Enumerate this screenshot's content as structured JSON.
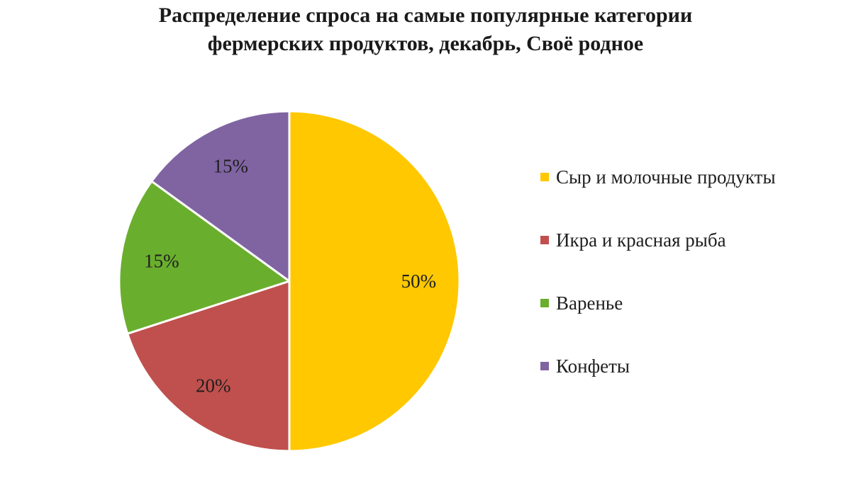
{
  "chart_data": {
    "type": "pie",
    "title": "Распределение спроса на самые популярные категории\nфермерских продуктов, декабрь, Своё родное",
    "categories": [
      "Сыр и молочные продукты",
      "Икра и красная рыба",
      "Варенье",
      "Конфеты"
    ],
    "values": [
      50,
      20,
      15,
      15
    ],
    "value_labels": [
      "50%",
      "20%",
      "15%",
      "15%"
    ],
    "colors": [
      "#FFC800",
      "#C0504D",
      "#6AAE2E",
      "#8064A2"
    ],
    "start_angle_deg": 0,
    "direction": "clockwise",
    "legend_position": "right",
    "label_color": "#1f1f1f",
    "slice_border_color": "#ffffff"
  }
}
